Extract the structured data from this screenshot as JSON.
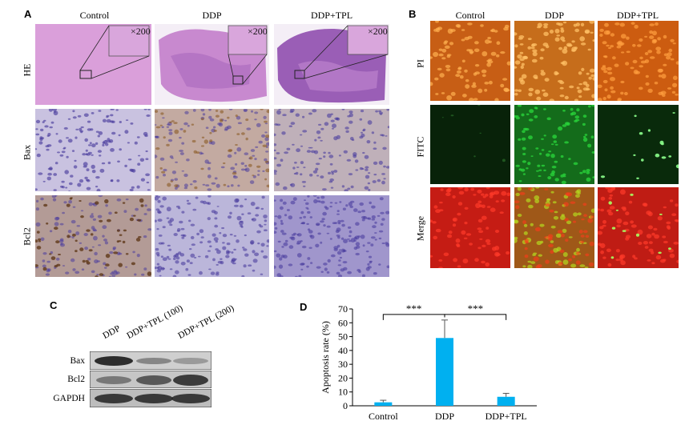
{
  "panel_a": {
    "letter": "A",
    "columns": [
      "Control",
      "DDP",
      "DDP+TPL"
    ],
    "rows": [
      "HE",
      "Bax",
      "Bcl2"
    ],
    "magnification": "×200"
  },
  "panel_b": {
    "letter": "B",
    "columns": [
      "Control",
      "DDP",
      "DDP+TPL"
    ],
    "rows": [
      "PI",
      "FITC",
      "Merge"
    ]
  },
  "panel_c": {
    "letter": "C",
    "lanes": [
      "DDP",
      "DDP+TPL (100)",
      "DDP+TPL (200)"
    ],
    "proteins": [
      "Bax",
      "Bcl2",
      "GAPDH"
    ]
  },
  "panel_d": {
    "letter": "D",
    "significance": [
      "***",
      "***"
    ]
  },
  "colors": {
    "bar": "#00b0f0",
    "he_pink": "#d59ad3",
    "he_purple": "#9b5fb8",
    "ihc_bg": "#e9e6f1",
    "nuclei": "#4b3d9e",
    "pi_orange": "#e0701a",
    "fitc_green": "#28d23a",
    "merge_red": "#e51c12"
  },
  "chart_data": {
    "type": "bar",
    "categories": [
      "Control",
      "DDP",
      "DDP+TPL"
    ],
    "values": [
      2.5,
      49,
      6.5
    ],
    "errors": [
      1.5,
      13,
      2.5
    ],
    "ylabel": "Apoptosis rate (%)",
    "xlabel": "",
    "ylim": [
      0,
      70
    ],
    "yticks": [
      0,
      10,
      20,
      30,
      40,
      50,
      60,
      70
    ],
    "annotations": [
      {
        "from": "Control",
        "to": "DDP",
        "label": "***"
      },
      {
        "from": "DDP",
        "to": "DDP+TPL",
        "label": "***"
      }
    ]
  }
}
